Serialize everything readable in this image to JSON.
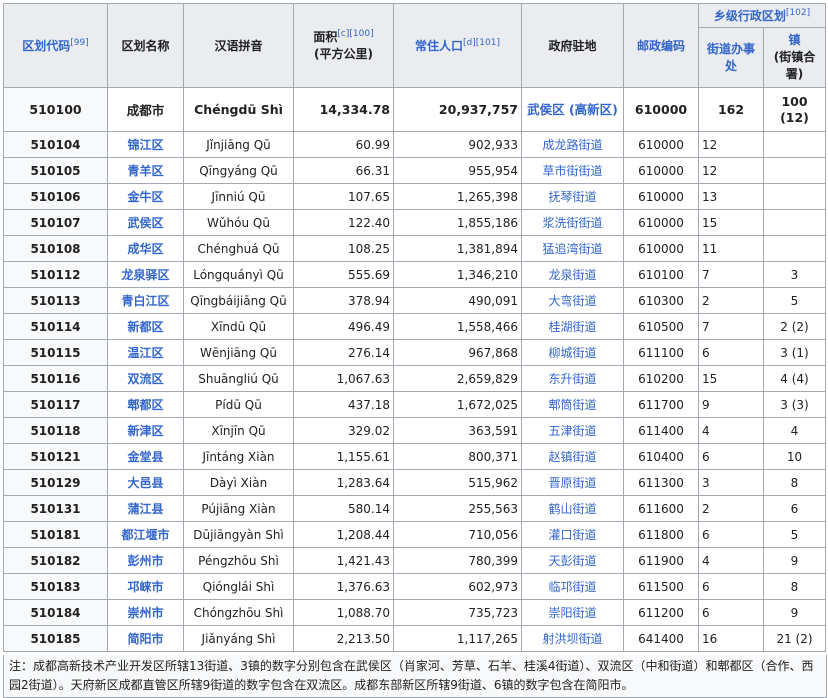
{
  "headers": {
    "code": "区划代码",
    "code_ref": "[99]",
    "name": "区划名称",
    "pinyin": "汉语拼音",
    "area": "面积",
    "area_ref": "[c][100]",
    "area_unit": "(平方公里)",
    "pop": "常住人口",
    "pop_ref": "[d][101]",
    "seat": "政府驻地",
    "post": "邮政编码",
    "township_group": "乡级行政区划",
    "township_group_ref": "[102]",
    "subdistrict": "街道办事处",
    "town": "镇",
    "town_sub": "(街镇合署)"
  },
  "city": {
    "code": "510100",
    "name": "成都市",
    "pinyin": "Chéngdū Shì",
    "area": "14,334.78",
    "pop": "20,937,757",
    "seat": "武侯区 (高新区)",
    "post": "610000",
    "subdistricts": "162",
    "towns": "100",
    "towns_sub": "(12)"
  },
  "rows": [
    {
      "code": "510104",
      "name": "锦江区",
      "pinyin": "Jǐnjiāng Qū",
      "area": "60.99",
      "pop": "902,933",
      "seat": "成龙路街道",
      "post": "610000",
      "sub": "12",
      "town": ""
    },
    {
      "code": "510105",
      "name": "青羊区",
      "pinyin": "Qīngyáng Qū",
      "area": "66.31",
      "pop": "955,954",
      "seat": "草市街街道",
      "post": "610000",
      "sub": "12",
      "town": ""
    },
    {
      "code": "510106",
      "name": "金牛区",
      "pinyin": "Jīnniú Qū",
      "area": "107.65",
      "pop": "1,265,398",
      "seat": "抚琴街道",
      "post": "610000",
      "sub": "13",
      "town": ""
    },
    {
      "code": "510107",
      "name": "武侯区",
      "pinyin": "Wǔhóu Qū",
      "area": "122.40",
      "pop": "1,855,186",
      "seat": "浆洗街街道",
      "post": "610000",
      "sub": "15",
      "town": ""
    },
    {
      "code": "510108",
      "name": "成华区",
      "pinyin": "Chénghuá Qū",
      "area": "108.25",
      "pop": "1,381,894",
      "seat": "猛追湾街道",
      "post": "610000",
      "sub": "11",
      "town": ""
    },
    {
      "code": "510112",
      "name": "龙泉驿区",
      "pinyin": "Lóngquányì Qū",
      "area": "555.69",
      "pop": "1,346,210",
      "seat": "龙泉街道",
      "post": "610100",
      "sub": "7",
      "town": "3"
    },
    {
      "code": "510113",
      "name": "青白江区",
      "pinyin": "Qīngbáijiāng Qū",
      "area": "378.94",
      "pop": "490,091",
      "seat": "大弯街道",
      "post": "610300",
      "sub": "2",
      "town": "5"
    },
    {
      "code": "510114",
      "name": "新都区",
      "pinyin": "Xīndū Qū",
      "area": "496.49",
      "pop": "1,558,466",
      "seat": "桂湖街道",
      "post": "610500",
      "sub": "7",
      "town": "2 (2)"
    },
    {
      "code": "510115",
      "name": "温江区",
      "pinyin": "Wēnjiāng Qū",
      "area": "276.14",
      "pop": "967,868",
      "seat": "柳城街道",
      "post": "611100",
      "sub": "6",
      "town": "3 (1)"
    },
    {
      "code": "510116",
      "name": "双流区",
      "pinyin": "Shuāngliú Qū",
      "area": "1,067.63",
      "pop": "2,659,829",
      "seat": "东升街道",
      "post": "610200",
      "sub": "15",
      "town": "4 (4)"
    },
    {
      "code": "510117",
      "name": "郫都区",
      "pinyin": "Pídū Qū",
      "area": "437.18",
      "pop": "1,672,025",
      "seat": "郫筒街道",
      "post": "611700",
      "sub": "9",
      "town": "3 (3)"
    },
    {
      "code": "510118",
      "name": "新津区",
      "pinyin": "Xīnjīn Qū",
      "area": "329.02",
      "pop": "363,591",
      "seat": "五津街道",
      "post": "611400",
      "sub": "4",
      "town": "4"
    },
    {
      "code": "510121",
      "name": "金堂县",
      "pinyin": "Jīntáng Xiàn",
      "area": "1,155.61",
      "pop": "800,371",
      "seat": "赵镇街道",
      "post": "610400",
      "sub": "6",
      "town": "10"
    },
    {
      "code": "510129",
      "name": "大邑县",
      "pinyin": "Dàyì Xiàn",
      "area": "1,283.64",
      "pop": "515,962",
      "seat": "晋原街道",
      "post": "611300",
      "sub": "3",
      "town": "8"
    },
    {
      "code": "510131",
      "name": "蒲江县",
      "pinyin": "Pújiāng Xiàn",
      "area": "580.14",
      "pop": "255,563",
      "seat": "鹤山街道",
      "post": "611600",
      "sub": "2",
      "town": "6"
    },
    {
      "code": "510181",
      "name": "都江堰市",
      "pinyin": "Dūjiāngyàn Shì",
      "area": "1,208.44",
      "pop": "710,056",
      "seat": "灌口街道",
      "post": "611800",
      "sub": "6",
      "town": "5"
    },
    {
      "code": "510182",
      "name": "彭州市",
      "pinyin": "Péngzhōu Shì",
      "area": "1,421.43",
      "pop": "780,399",
      "seat": "天彭街道",
      "post": "611900",
      "sub": "4",
      "town": "9"
    },
    {
      "code": "510183",
      "name": "邛崃市",
      "pinyin": "Qiónglái Shì",
      "area": "1,376.63",
      "pop": "602,973",
      "seat": "临邛街道",
      "post": "611500",
      "sub": "6",
      "town": "8"
    },
    {
      "code": "510184",
      "name": "崇州市",
      "pinyin": "Chóngzhōu Shì",
      "area": "1,088.70",
      "pop": "735,723",
      "seat": "崇阳街道",
      "post": "611200",
      "sub": "6",
      "town": "9"
    },
    {
      "code": "510185",
      "name": "简阳市",
      "pinyin": "Jiǎnyáng Shì",
      "area": "2,213.50",
      "pop": "1,117,265",
      "seat": "射洪坝街道",
      "post": "641400",
      "sub": "16",
      "town": "21 (2)"
    }
  ],
  "note": "注：成都高新技术产业开发区所辖13街道、3镇的数字分别包含在武侯区（肖家河、芳草、石羊、桂溪4街道）、双流区（中和街道）和郫都区（合作、西园2街道）。天府新区成都直管区所辖9街道的数字包含在双流区。成都东部新区所辖9街道、6镇的数字包含在简阳市。",
  "colors": {
    "link": "#3366cc",
    "header_bg": "#eaecf0",
    "border": "#a2a9b1"
  }
}
